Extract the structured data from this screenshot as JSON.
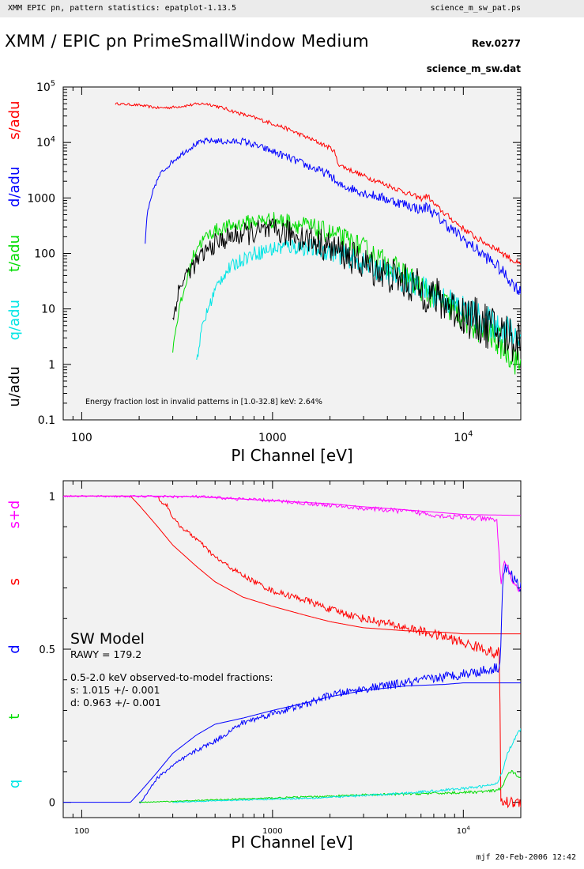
{
  "header": {
    "left": "XMM EPIC pn, pattern statistics: epatplot-1.13.5",
    "right": "science_m_sw_pat.ps"
  },
  "title": "XMM / EPIC pn PrimeSmallWindow Medium",
  "revision": "Rev.0277",
  "data_file": "science_m_sw.dat",
  "footer": "mjf 20-Feb-2006 12:42",
  "colors": {
    "s": "#ff0000",
    "d": "#0000ff",
    "t": "#00dd00",
    "q": "#00e5e5",
    "u": "#000000",
    "s+d": "#ff00ff",
    "panel_bg": "#f2f2f2"
  },
  "chart_data": [
    {
      "type": "line",
      "x_scale": "log",
      "y_scale": "log",
      "xlabel": "PI Channel [eV]",
      "xlim": [
        80,
        20000
      ],
      "ylim": [
        0.1,
        100000
      ],
      "x_ticks": [
        {
          "v": 100,
          "label": "100"
        },
        {
          "v": 1000,
          "label": "1000"
        },
        {
          "v": 10000,
          "label": "10",
          "sup": "4"
        }
      ],
      "y_ticks": [
        {
          "v": 0.1,
          "label": "0.1"
        },
        {
          "v": 1,
          "label": "1"
        },
        {
          "v": 10,
          "label": "10"
        },
        {
          "v": 100,
          "label": "100"
        },
        {
          "v": 1000,
          "label": "1000"
        },
        {
          "v": 10000,
          "label": "10",
          "sup": "4"
        },
        {
          "v": 100000,
          "label": "10",
          "sup": "5"
        }
      ],
      "ylabels": [
        {
          "text": "s/adu",
          "color": "#ff0000"
        },
        {
          "text": "d/adu",
          "color": "#0000ff"
        },
        {
          "text": "t/adu",
          "color": "#00dd00"
        },
        {
          "text": "q/adu",
          "color": "#00e5e5"
        },
        {
          "text": "u/adu",
          "color": "#000000"
        }
      ],
      "annotation": "Energy fraction lost in invalid patterns in [1.0-32.8] keV:  2.64%",
      "series": [
        {
          "name": "s",
          "color": "#ff0000",
          "noise": 0.04,
          "x": [
            150,
            200,
            250,
            300,
            350,
            400,
            450,
            500,
            600,
            700,
            800,
            1000,
            1200,
            1500,
            1800,
            2000,
            2100,
            2200,
            2300,
            2500,
            3000,
            4000,
            5000,
            6000,
            6500,
            7000,
            8000,
            10000,
            12000,
            15000,
            20000
          ],
          "y": [
            50000,
            47000,
            42000,
            43000,
            46000,
            49000,
            50000,
            46000,
            38000,
            32000,
            28000,
            22000,
            17500,
            12500,
            9500,
            8000,
            7200,
            4200,
            3800,
            3300,
            2500,
            1700,
            1250,
            970,
            1100,
            780,
            520,
            280,
            180,
            120,
            60
          ]
        },
        {
          "name": "d",
          "color": "#0000ff",
          "noise": 0.08,
          "x": [
            215,
            220,
            230,
            240,
            260,
            300,
            350,
            400,
            450,
            500,
            600,
            700,
            800,
            1000,
            1200,
            1500,
            1800,
            2000,
            2100,
            2200,
            2300,
            2500,
            3000,
            4000,
            5000,
            6000,
            6500,
            7000,
            8000,
            10000,
            12000,
            15000,
            20000
          ],
          "y": [
            150,
            500,
            900,
            1600,
            2800,
            4600,
            7000,
            9500,
            10700,
            10700,
            10200,
            10600,
            9000,
            6900,
            5400,
            3900,
            3000,
            2600,
            2200,
            1700,
            1650,
            1550,
            1250,
            940,
            760,
            620,
            700,
            520,
            350,
            180,
            110,
            60,
            20
          ]
        },
        {
          "name": "t",
          "color": "#00dd00",
          "noise": 0.2,
          "x": [
            300,
            320,
            340,
            360,
            380,
            400,
            450,
            500,
            600,
            800,
            1000,
            1200,
            1500,
            2000,
            2500,
            3000,
            4000,
            5000,
            6000,
            8000,
            10000,
            12000,
            15000,
            20000
          ],
          "y": [
            2,
            8,
            18,
            40,
            80,
            130,
            200,
            260,
            310,
            380,
            400,
            370,
            310,
            230,
            170,
            120,
            65,
            40,
            24,
            12,
            7,
            4.5,
            2.8,
            1
          ]
        },
        {
          "name": "q",
          "color": "#00e5e5",
          "noise": 0.2,
          "x": [
            400,
            430,
            460,
            500,
            550,
            600,
            700,
            800,
            1000,
            1200,
            1500,
            2000,
            2500,
            3000,
            4000,
            5000,
            6000,
            8000,
            10000,
            12000,
            15000,
            20000
          ],
          "y": [
            1.2,
            5,
            10,
            22,
            40,
            55,
            80,
            100,
            120,
            135,
            130,
            110,
            85,
            65,
            45,
            32,
            24,
            15,
            10,
            7,
            5,
            3
          ]
        },
        {
          "name": "u",
          "color": "#000000",
          "noise": 0.3,
          "x": [
            300,
            320,
            350,
            400,
            450,
            500,
            600,
            800,
            1000,
            1200,
            1500,
            2000,
            2500,
            3000,
            4000,
            5000,
            6000,
            8000,
            10000,
            12000,
            15000,
            20000
          ],
          "y": [
            6,
            20,
            40,
            70,
            110,
            150,
            200,
            240,
            250,
            230,
            190,
            130,
            90,
            65,
            42,
            30,
            22,
            13,
            8,
            6,
            4,
            2.5
          ]
        }
      ]
    },
    {
      "type": "line",
      "x_scale": "log",
      "y_scale": "linear",
      "xlabel": "PI Channel [eV]",
      "xlim": [
        80,
        20000
      ],
      "ylim": [
        -0.05,
        1.05
      ],
      "x_ticks": [
        {
          "v": 100,
          "label": "100"
        },
        {
          "v": 1000,
          "label": "1000"
        },
        {
          "v": 10000,
          "label": "10",
          "sup": "4"
        }
      ],
      "y_ticks": [
        {
          "v": 0,
          "label": "0"
        },
        {
          "v": 0.5,
          "label": "0.5"
        },
        {
          "v": 1,
          "label": "1"
        }
      ],
      "ylabels": [
        {
          "text": "s+d",
          "color": "#ff00ff"
        },
        {
          "text": "s",
          "color": "#ff0000"
        },
        {
          "text": "d",
          "color": "#0000ff"
        },
        {
          "text": "t",
          "color": "#00dd00"
        },
        {
          "text": "q",
          "color": "#00e5e5"
        }
      ],
      "model_title": "SW Model",
      "model_rawy": "RAWY = 179.2",
      "fractions_header": "0.5-2.0 keV observed-to-model fractions:",
      "fractions": [
        "s: 1.015 +/- 0.001",
        "d: 0.963 +/- 0.001"
      ],
      "models": [
        {
          "name": "s model",
          "color": "#ff0000",
          "x": [
            80,
            180,
            200,
            250,
            300,
            400,
            500,
            700,
            1000,
            1500,
            2000,
            3000,
            5000,
            8000,
            10000,
            15000,
            15500,
            20000
          ],
          "y": [
            1,
            1,
            0.97,
            0.9,
            0.84,
            0.77,
            0.72,
            0.67,
            0.64,
            0.61,
            0.59,
            0.57,
            0.56,
            0.555,
            0.55,
            0.55,
            0.55,
            0.55
          ]
        },
        {
          "name": "d model",
          "color": "#0000ff",
          "x": [
            80,
            180,
            200,
            250,
            300,
            400,
            500,
            700,
            1000,
            1500,
            2000,
            3000,
            5000,
            8000,
            10000,
            15000,
            15500,
            20000
          ],
          "y": [
            0,
            0,
            0.03,
            0.1,
            0.16,
            0.22,
            0.255,
            0.275,
            0.3,
            0.325,
            0.345,
            0.365,
            0.38,
            0.385,
            0.39,
            0.39,
            0.39,
            0.39
          ]
        },
        {
          "name": "s+d model",
          "color": "#ff00ff",
          "x": [
            80,
            250,
            400,
            700,
            1000,
            2000,
            3000,
            5000,
            8000,
            10000,
            15000,
            20000
          ],
          "y": [
            1,
            1,
            0.998,
            0.99,
            0.985,
            0.975,
            0.965,
            0.955,
            0.945,
            0.94,
            0.938,
            0.937
          ]
        }
      ],
      "series": [
        {
          "name": "s",
          "color": "#ff0000",
          "noise": 0.012,
          "x": [
            250,
            260,
            280,
            300,
            330,
            400,
            500,
            700,
            1000,
            1500,
            2000,
            3000,
            5000,
            8000,
            10000,
            13000,
            15000,
            15500,
            15700,
            16000,
            20000
          ],
          "y": [
            1,
            0.98,
            0.97,
            0.93,
            0.9,
            0.86,
            0.8,
            0.74,
            0.69,
            0.66,
            0.63,
            0.6,
            0.57,
            0.54,
            0.52,
            0.5,
            0.48,
            0.5,
            0,
            0,
            0
          ]
        },
        {
          "name": "d",
          "color": "#0000ff",
          "noise": 0.012,
          "x": [
            200,
            210,
            230,
            250,
            300,
            400,
            500,
            700,
            1000,
            1500,
            2000,
            3000,
            5000,
            8000,
            10000,
            13000,
            15000,
            15600,
            16000,
            16500,
            20000
          ],
          "y": [
            0,
            0.01,
            0.05,
            0.08,
            0.12,
            0.17,
            0.2,
            0.26,
            0.29,
            0.32,
            0.35,
            0.37,
            0.39,
            0.41,
            0.42,
            0.43,
            0.44,
            0.45,
            0.7,
            0.77,
            0.7
          ]
        },
        {
          "name": "s+d",
          "color": "#ff00ff",
          "noise": 0.006,
          "x": [
            80,
            400,
            700,
            1000,
            2000,
            3000,
            5000,
            8000,
            10000,
            13000,
            15000,
            15800,
            16200,
            17000,
            18000,
            20000
          ],
          "y": [
            1,
            0.998,
            0.99,
            0.985,
            0.97,
            0.96,
            0.95,
            0.935,
            0.93,
            0.925,
            0.92,
            0.7,
            0.78,
            0.78,
            0.72,
            0.69
          ]
        },
        {
          "name": "t",
          "color": "#00dd00",
          "noise": 0.003,
          "x": [
            200,
            300,
            500,
            1000,
            2000,
            3000,
            5000,
            8000,
            10000,
            12000,
            15000,
            16000,
            17000,
            18000,
            20000
          ],
          "y": [
            0,
            0.003,
            0.008,
            0.014,
            0.02,
            0.024,
            0.027,
            0.03,
            0.032,
            0.034,
            0.038,
            0.05,
            0.09,
            0.1,
            0.08
          ]
        },
        {
          "name": "q",
          "color": "#00e5e5",
          "noise": 0.003,
          "x": [
            300,
            500,
            1000,
            2000,
            3000,
            5000,
            8000,
            10000,
            12000,
            15000,
            16000,
            17000,
            18000,
            19000,
            20000
          ],
          "y": [
            0,
            0.005,
            0.01,
            0.016,
            0.022,
            0.03,
            0.04,
            0.045,
            0.05,
            0.06,
            0.1,
            0.16,
            0.19,
            0.22,
            0.24
          ]
        }
      ]
    }
  ]
}
